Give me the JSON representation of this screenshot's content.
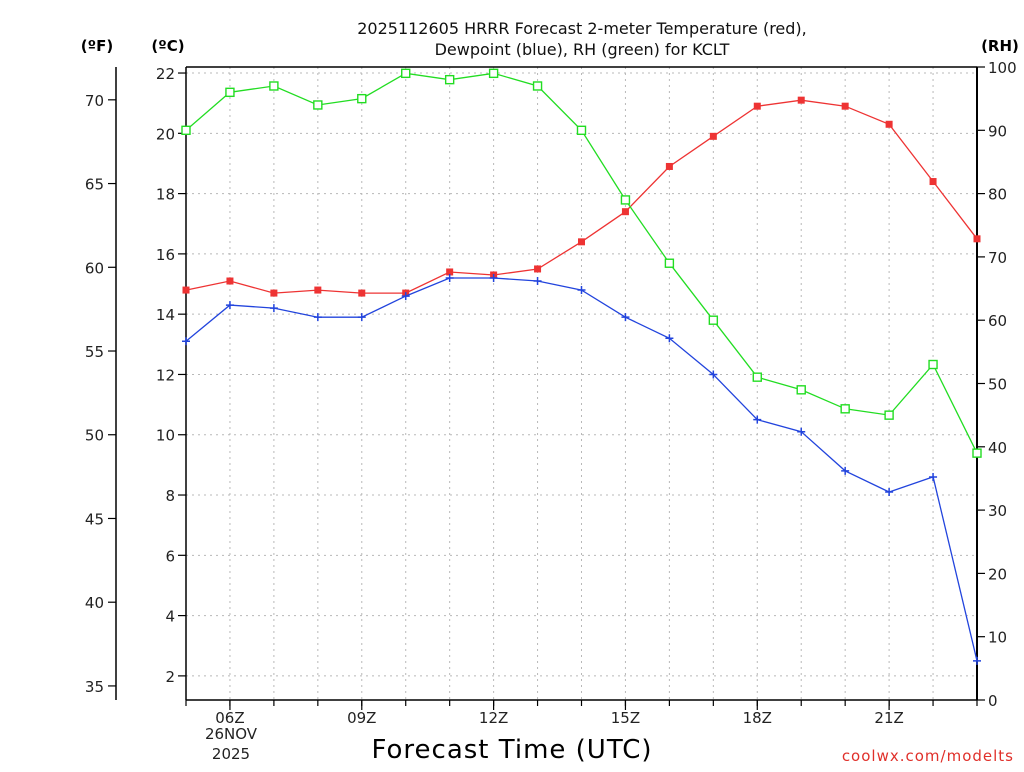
{
  "chart_data": {
    "type": "line",
    "title_line1": "2025112605 HRRR Forecast 2-meter Temperature (red),",
    "title_line2": "Dewpoint (blue), RH (green) for KCLT",
    "xlabel": "Forecast Time (UTC)",
    "credit": "coolwx.com/modelts",
    "date_line1": "26NOV",
    "date_line2": "2025",
    "unit_labels": {
      "fahrenheit": "(ºF)",
      "celsius": "(ºC)",
      "rh": "(RH)"
    },
    "hours": [
      5,
      6,
      7,
      8,
      9,
      10,
      11,
      12,
      13,
      14,
      15,
      16,
      17,
      18,
      19,
      20,
      21,
      22,
      23
    ],
    "x_ticks": [
      {
        "hour": 6,
        "label": "06Z"
      },
      {
        "hour": 9,
        "label": "09Z"
      },
      {
        "hour": 12,
        "label": "12Z"
      },
      {
        "hour": 15,
        "label": "15Z"
      },
      {
        "hour": 18,
        "label": "18Z"
      },
      {
        "hour": 21,
        "label": "21Z"
      }
    ],
    "xlim": [
      5,
      23
    ],
    "celsius_axis": {
      "range": [
        1.2,
        22.2
      ],
      "ticks": [
        2,
        4,
        6,
        8,
        10,
        12,
        14,
        16,
        18,
        20,
        22
      ]
    },
    "fahrenheit_axis": {
      "range": [
        34.16,
        71.96
      ],
      "ticks": [
        35,
        40,
        45,
        50,
        55,
        60,
        65,
        70
      ]
    },
    "rh_axis": {
      "range": [
        0,
        100
      ],
      "ticks": [
        0,
        10,
        20,
        30,
        40,
        50,
        60,
        70,
        80,
        90,
        100
      ]
    },
    "series": [
      {
        "name": "Temperature",
        "axis": "celsius",
        "color": "#ee3333",
        "marker": "filled-square",
        "values": [
          14.8,
          15.1,
          14.7,
          14.8,
          14.7,
          14.7,
          15.4,
          15.3,
          15.5,
          16.4,
          17.4,
          18.9,
          19.9,
          20.9,
          21.1,
          20.9,
          20.3,
          18.4,
          16.5
        ]
      },
      {
        "name": "Dewpoint",
        "axis": "celsius",
        "color": "#2244dd",
        "marker": "plus",
        "values": [
          13.1,
          14.3,
          14.2,
          13.9,
          13.9,
          14.6,
          15.2,
          15.2,
          15.1,
          14.8,
          13.9,
          13.2,
          12.0,
          10.5,
          10.1,
          8.8,
          8.1,
          8.6,
          2.5
        ]
      },
      {
        "name": "RH",
        "axis": "rh",
        "color": "#22dd22",
        "marker": "open-square",
        "values": [
          90,
          96,
          97,
          94,
          95,
          99,
          98,
          99,
          97,
          90,
          79,
          69,
          60,
          51,
          49,
          46,
          45,
          53,
          39
        ]
      }
    ]
  }
}
